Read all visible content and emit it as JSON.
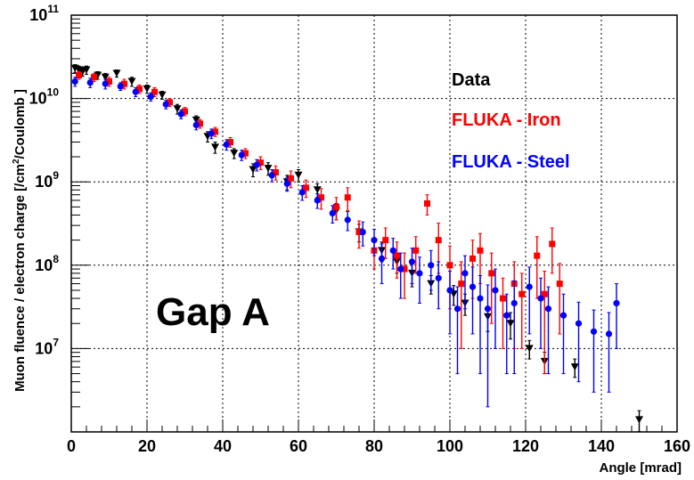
{
  "chart_data": {
    "type": "scatter",
    "title": "",
    "xlabel": "Angle [mrad]",
    "ylabel_prefix": "Muon fluence / electron charge [/cm",
    "ylabel_sup": "2",
    "ylabel_suffix": "/Coulomb ]",
    "xlim": [
      0,
      160
    ],
    "ylim": [
      1000000.0,
      100000000000.0
    ],
    "y_scale": "log",
    "grid": true,
    "x_ticks": [
      "0",
      "20",
      "40",
      "60",
      "80",
      "100",
      "120",
      "140",
      "160"
    ],
    "y_ticks": [
      {
        "base": "10",
        "exp": "7",
        "value": 10000000.0
      },
      {
        "base": "10",
        "exp": "8",
        "value": 100000000.0
      },
      {
        "base": "10",
        "exp": "9",
        "value": 1000000000.0
      },
      {
        "base": "10",
        "exp": "10",
        "value": 10000000000.0
      },
      {
        "base": "10",
        "exp": "11",
        "value": 100000000000.0
      }
    ],
    "annotation": "Gap A",
    "legend_position": "top-right",
    "series": [
      {
        "name": "Data",
        "color": "#000000",
        "marker": "triangle-down",
        "points": [
          [
            1,
            23000000000.0
          ],
          [
            2,
            22000000000.0
          ],
          [
            3,
            21000000000.0
          ],
          [
            4,
            22000000000.0
          ],
          [
            7,
            19000000000.0
          ],
          [
            9,
            18000000000.0
          ],
          [
            12,
            20000000000.0
          ],
          [
            16,
            16000000000.0
          ],
          [
            20,
            13000000000.0
          ],
          [
            24,
            11000000000.0
          ],
          [
            28,
            7500000000.0
          ],
          [
            33,
            5500000000.0
          ],
          [
            36,
            3500000000.0
          ],
          [
            38,
            2600000000.0
          ],
          [
            43,
            2200000000.0
          ],
          [
            48,
            1400000000.0
          ],
          [
            52,
            1450000000.0
          ],
          [
            57,
            1000000000.0
          ],
          [
            60,
            1200000000.0
          ],
          [
            65,
            800000000.0
          ],
          [
            70,
            450000000.0
          ],
          [
            76,
            250000000.0
          ],
          [
            82,
            150000000.0
          ],
          [
            86,
            110000000.0
          ],
          [
            90,
            80000000.0
          ],
          [
            95,
            60000000.0
          ],
          [
            101,
            45000000.0
          ],
          [
            104,
            35000000.0
          ],
          [
            110,
            24000000.0
          ],
          [
            116,
            20000000.0
          ],
          [
            121,
            10000000.0
          ],
          [
            125,
            7000000.0
          ],
          [
            133,
            6000000.0
          ],
          [
            150,
            1400000.0
          ]
        ],
        "errors": [
          2500000000.0,
          2500000000.0,
          2500000000.0,
          2500000000.0,
          2000000000.0,
          2000000000.0,
          2000000000.0,
          2000000000.0,
          1500000000.0,
          1200000000.0,
          1000000000.0,
          700000000.0,
          500000000.0,
          400000000.0,
          300000000.0,
          250000000.0,
          250000000.0,
          200000000.0,
          200000000.0,
          150000000.0,
          100000000.0,
          60000000.0,
          40000000.0,
          30000000.0,
          25000000.0,
          15000000.0,
          12000000.0,
          10000000.0,
          8000000.0,
          7000000.0,
          2500000.0,
          2000000.0,
          1500000.0,
          400000.0
        ]
      },
      {
        "name": "FLUKA - Iron",
        "color": "#ff0000",
        "marker": "square",
        "points": [
          [
            2,
            19000000000.0
          ],
          [
            6,
            18000000000.0
          ],
          [
            10,
            16000000000.0
          ],
          [
            14,
            15000000000.0
          ],
          [
            18,
            13000000000.0
          ],
          [
            22,
            12000000000.0
          ],
          [
            26,
            9000000000.0
          ],
          [
            30,
            7000000000.0
          ],
          [
            34,
            5000000000.0
          ],
          [
            38,
            4000000000.0
          ],
          [
            42,
            3000000000.0
          ],
          [
            46,
            2200000000.0
          ],
          [
            50,
            1700000000.0
          ],
          [
            54,
            1300000000.0
          ],
          [
            58,
            1100000000.0
          ],
          [
            62,
            850000000.0
          ],
          [
            66,
            650000000.0
          ],
          [
            70,
            500000000.0
          ],
          [
            73,
            650000000.0
          ],
          [
            76,
            250000000.0
          ],
          [
            80,
            150000000.0
          ],
          [
            83,
            200000000.0
          ],
          [
            86,
            130000000.0
          ],
          [
            88,
            90000000.0
          ],
          [
            91,
            150000000.0
          ],
          [
            94,
            550000000.0
          ],
          [
            97,
            200000000.0
          ],
          [
            100,
            100000000.0
          ],
          [
            103,
            60000000.0
          ],
          [
            106,
            120000000.0
          ],
          [
            108,
            150000000.0
          ],
          [
            111,
            80000000.0
          ],
          [
            114,
            40000000.0
          ],
          [
            117,
            60000000.0
          ],
          [
            119,
            45000000.0
          ],
          [
            123,
            130000000.0
          ],
          [
            125,
            45000000.0
          ],
          [
            127,
            180000000.0
          ],
          [
            129,
            60000000.0
          ]
        ],
        "errors": [
          2000000000.0,
          2000000000.0,
          2000000000.0,
          2000000000.0,
          1500000000.0,
          1500000000.0,
          1000000000.0,
          800000000.0,
          600000000.0,
          500000000.0,
          400000000.0,
          300000000.0,
          300000000.0,
          250000000.0,
          250000000.0,
          200000000.0,
          180000000.0,
          150000000.0,
          200000000.0,
          90000000.0,
          60000000.0,
          80000000.0,
          60000000.0,
          50000000.0,
          70000000.0,
          150000000.0,
          120000000.0,
          70000000.0,
          50000000.0,
          80000000.0,
          90000000.0,
          60000000.0,
          30000000.0,
          50000000.0,
          35000000.0,
          90000000.0,
          40000000.0,
          100000000.0,
          45000000.0
        ]
      },
      {
        "name": "FLUKA - Steel",
        "color": "#0000ff",
        "marker": "circle",
        "points": [
          [
            1,
            16000000000.0
          ],
          [
            5,
            15500000000.0
          ],
          [
            9,
            15000000000.0
          ],
          [
            13,
            14000000000.0
          ],
          [
            17,
            12000000000.0
          ],
          [
            21,
            10500000000.0
          ],
          [
            25,
            8500000000.0
          ],
          [
            29,
            6500000000.0
          ],
          [
            33,
            4800000000.0
          ],
          [
            37,
            3800000000.0
          ],
          [
            41,
            2800000000.0
          ],
          [
            45,
            2100000000.0
          ],
          [
            49,
            1600000000.0
          ],
          [
            53,
            1200000000.0
          ],
          [
            57,
            950000000.0
          ],
          [
            61,
            750000000.0
          ],
          [
            65,
            600000000.0
          ],
          [
            69,
            420000000.0
          ],
          [
            73,
            350000000.0
          ],
          [
            77,
            250000000.0
          ],
          [
            80,
            200000000.0
          ],
          [
            82,
            120000000.0
          ],
          [
            85,
            150000000.0
          ],
          [
            87,
            90000000.0
          ],
          [
            90,
            110000000.0
          ],
          [
            92,
            80000000.0
          ],
          [
            95,
            100000000.0
          ],
          [
            97,
            70000000.0
          ],
          [
            100,
            50000000.0
          ],
          [
            102,
            30000000.0
          ],
          [
            104,
            80000000.0
          ],
          [
            106,
            55000000.0
          ],
          [
            108,
            40000000.0
          ],
          [
            110,
            30000000.0
          ],
          [
            112,
            50000000.0
          ],
          [
            115,
            25000000.0
          ],
          [
            117,
            35000000.0
          ],
          [
            121,
            55000000.0
          ],
          [
            124,
            40000000.0
          ],
          [
            126,
            30000000.0
          ],
          [
            130,
            25000000.0
          ],
          [
            134,
            20000000.0
          ],
          [
            138,
            16000000.0
          ],
          [
            142,
            15000000.0
          ],
          [
            144,
            35000000.0
          ]
        ],
        "errors": [
          2000000000.0,
          2000000000.0,
          2000000000.0,
          1500000000.0,
          1500000000.0,
          1200000000.0,
          1000000000.0,
          800000000.0,
          600000000.0,
          500000000.0,
          400000000.0,
          300000000.0,
          250000000.0,
          200000000.0,
          180000000.0,
          150000000.0,
          120000000.0,
          100000000.0,
          90000000.0,
          80000000.0,
          70000000.0,
          60000000.0,
          60000000.0,
          50000000.0,
          50000000.0,
          45000000.0,
          50000000.0,
          40000000.0,
          35000000.0,
          25000000.0,
          50000000.0,
          40000000.0,
          35000000.0,
          28000000.0,
          40000000.0,
          20000000.0,
          30000000.0,
          40000000.0,
          30000000.0,
          25000000.0,
          20000000.0,
          16000000.0,
          13000000.0,
          12000000.0,
          25000000.0
        ]
      }
    ]
  }
}
